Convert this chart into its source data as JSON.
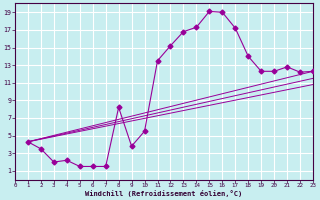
{
  "xlabel": "Windchill (Refroidissement éolien,°C)",
  "bg_color": "#c8eef0",
  "line_color": "#990099",
  "grid_color": "#ffffff",
  "xlim": [
    0,
    23
  ],
  "ylim": [
    0,
    20
  ],
  "xticks": [
    0,
    1,
    2,
    3,
    4,
    5,
    6,
    7,
    8,
    9,
    10,
    11,
    12,
    13,
    14,
    15,
    16,
    17,
    18,
    19,
    20,
    21,
    22,
    23
  ],
  "yticks": [
    1,
    3,
    5,
    7,
    9,
    11,
    13,
    15,
    17,
    19
  ],
  "curve_x": [
    1,
    2,
    3,
    4,
    5,
    6,
    7,
    8,
    9,
    10,
    11,
    12,
    13,
    14,
    15,
    16,
    17,
    18,
    19,
    20,
    21,
    22,
    23
  ],
  "curve_y": [
    4.3,
    3.5,
    2.0,
    2.2,
    1.5,
    1.5,
    1.5,
    8.2,
    3.8,
    5.5,
    13.5,
    15.2,
    16.8,
    17.3,
    19.1,
    19.0,
    17.2,
    14.0,
    12.3,
    12.3,
    12.8,
    12.2,
    12.3
  ],
  "line1_x": [
    1,
    23
  ],
  "line1_y": [
    4.3,
    12.3
  ],
  "line2_x": [
    1,
    23
  ],
  "line2_y": [
    4.3,
    11.5
  ],
  "line3_x": [
    1,
    23
  ],
  "line3_y": [
    4.3,
    10.8
  ]
}
